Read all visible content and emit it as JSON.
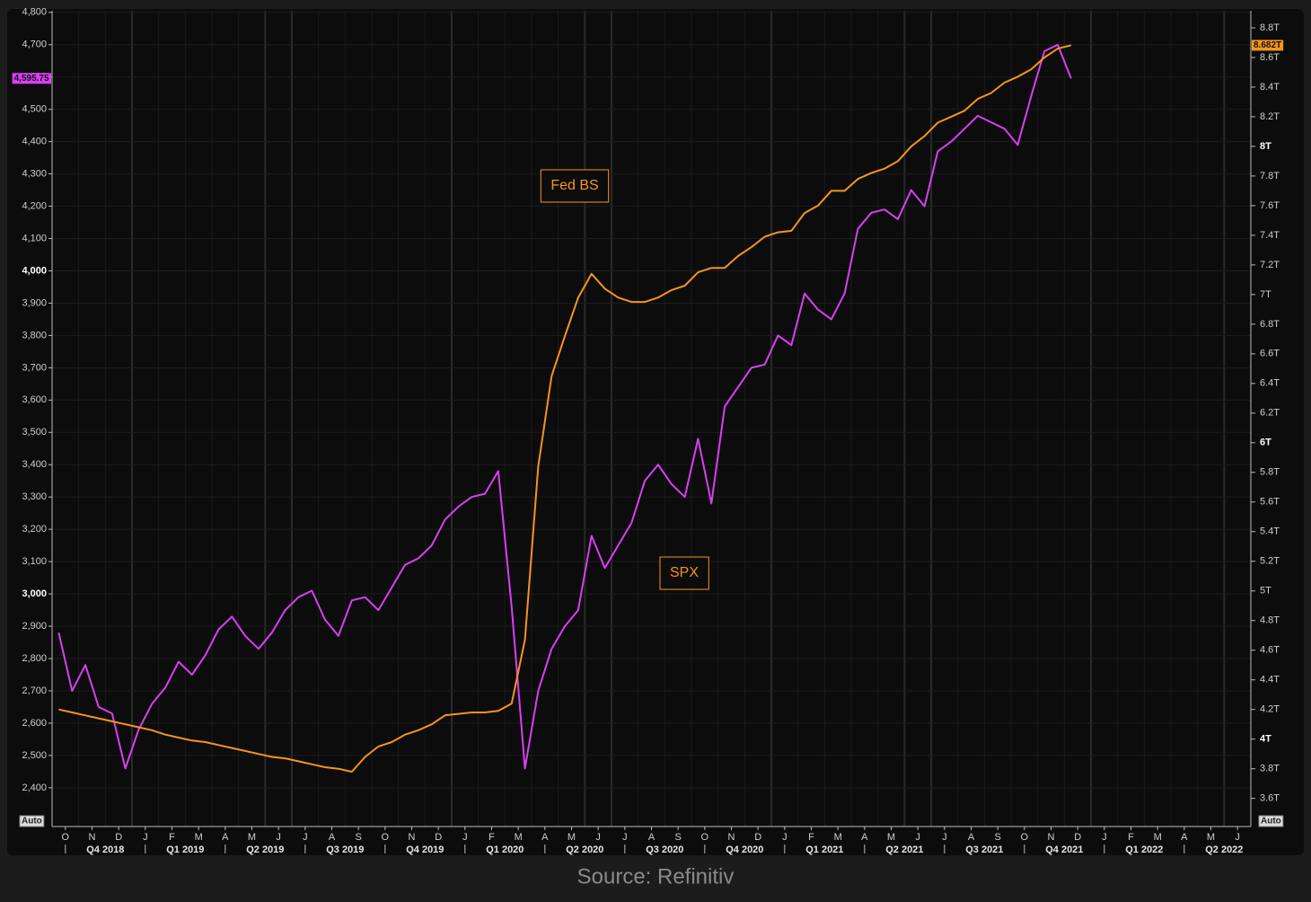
{
  "chart_data": {
    "type": "line",
    "categories": [
      "O",
      null,
      "N",
      null,
      "D",
      null,
      "J",
      null,
      "F",
      null,
      "M",
      null,
      "A",
      null,
      "M",
      null,
      "J",
      null,
      "J",
      null,
      "A",
      null,
      "S",
      null,
      "O",
      null,
      "N",
      null,
      "D",
      null,
      "J",
      null,
      "F",
      null,
      "M",
      null,
      "A",
      null,
      "M",
      null,
      "J",
      null,
      "J",
      null,
      "A",
      null,
      "S",
      null,
      "O",
      null,
      "N",
      null,
      "D",
      null,
      "J",
      null,
      "F",
      null,
      "M",
      null,
      "A",
      null,
      "M",
      null,
      "J",
      null,
      "J",
      null,
      "A",
      null,
      "S",
      null,
      "O",
      null,
      "N",
      null,
      "D",
      null,
      "J",
      null,
      "F",
      null,
      "M",
      null,
      "A",
      null,
      "M",
      null,
      "J",
      null
    ],
    "quarters": [
      "Q4 2018",
      "Q1 2019",
      "Q2 2019",
      "Q3 2019",
      "Q4 2019",
      "Q1 2020",
      "Q2 2020",
      "Q3 2020",
      "Q4 2020",
      "Q1 2021",
      "Q2 2021",
      "Q3 2021",
      "Q4 2021",
      "Q1 2022",
      "Q2 2022"
    ],
    "series": [
      {
        "name": "SPX",
        "color": "#d93ff2",
        "axis": "y",
        "values": [
          2880,
          2700,
          2780,
          2650,
          2630,
          2460,
          2580,
          2660,
          2710,
          2790,
          2750,
          2810,
          2890,
          2930,
          2870,
          2830,
          2880,
          2950,
          2990,
          3010,
          2920,
          2870,
          2980,
          2990,
          2950,
          3020,
          3090,
          3110,
          3150,
          3230,
          3270,
          3300,
          3310,
          3380,
          2960,
          2460,
          2700,
          2830,
          2900,
          2950,
          3180,
          3080,
          3150,
          3220,
          3350,
          3400,
          3340,
          3300,
          3480,
          3280,
          3580,
          3640,
          3700,
          3710,
          3800,
          3770,
          3930,
          3880,
          3850,
          3930,
          4130,
          4180,
          4190,
          4160,
          4250,
          4200,
          4370,
          4400,
          4440,
          4480,
          4460,
          4440,
          4390,
          4540,
          4680,
          4700,
          4595.75,
          null,
          null,
          null,
          null,
          null,
          null,
          null,
          null,
          null,
          null,
          null,
          null,
          null
        ],
        "value_labels": [
          null,
          null,
          null,
          null,
          null,
          null,
          null,
          null,
          null,
          null,
          null,
          null,
          null,
          null,
          null,
          null,
          null,
          null,
          null,
          null,
          null,
          null,
          null,
          null,
          null,
          null,
          null,
          null,
          null,
          null,
          null,
          null,
          null,
          null,
          null,
          null,
          null,
          null,
          null,
          null,
          null,
          null,
          null,
          null,
          null,
          null,
          null,
          null,
          null,
          null,
          null,
          null,
          null,
          null,
          null,
          null,
          null,
          null,
          null,
          null,
          null,
          null,
          null,
          null,
          null,
          null,
          null,
          null,
          null,
          null,
          null,
          null,
          null,
          null,
          null,
          null,
          "4,595.75",
          null,
          null,
          null,
          null,
          null,
          null,
          null,
          null,
          null,
          null,
          null,
          null,
          null
        ]
      },
      {
        "name": "Fed BS",
        "color": "#f7941d",
        "axis": "y2",
        "values": [
          4.2,
          4.18,
          4.16,
          4.14,
          4.12,
          4.1,
          4.08,
          4.06,
          4.03,
          4.01,
          3.99,
          3.98,
          3.96,
          3.94,
          3.92,
          3.9,
          3.88,
          3.87,
          3.85,
          3.83,
          3.81,
          3.8,
          3.78,
          3.88,
          3.95,
          3.98,
          4.03,
          4.06,
          4.1,
          4.16,
          4.17,
          4.18,
          4.18,
          4.19,
          4.24,
          4.67,
          5.84,
          6.45,
          6.72,
          6.98,
          7.14,
          7.04,
          6.98,
          6.95,
          6.95,
          6.98,
          7.03,
          7.06,
          7.15,
          7.18,
          7.18,
          7.26,
          7.32,
          7.39,
          7.42,
          7.43,
          7.55,
          7.6,
          7.7,
          7.7,
          7.78,
          7.82,
          7.85,
          7.9,
          8.0,
          8.07,
          8.16,
          8.2,
          8.24,
          8.32,
          8.36,
          8.43,
          8.47,
          8.52,
          8.6,
          8.66,
          8.682,
          null,
          null,
          null,
          null,
          null,
          null,
          null,
          null,
          null,
          null,
          null,
          null,
          null
        ],
        "value_labels": [
          null,
          null,
          null,
          null,
          null,
          null,
          null,
          null,
          null,
          null,
          null,
          null,
          null,
          null,
          null,
          null,
          null,
          null,
          null,
          null,
          null,
          null,
          null,
          null,
          null,
          null,
          null,
          null,
          null,
          null,
          null,
          null,
          null,
          null,
          null,
          null,
          null,
          null,
          null,
          null,
          null,
          null,
          null,
          null,
          null,
          null,
          null,
          null,
          null,
          null,
          null,
          null,
          null,
          null,
          null,
          null,
          null,
          null,
          null,
          null,
          null,
          null,
          null,
          null,
          null,
          null,
          null,
          null,
          null,
          null,
          null,
          null,
          null,
          null,
          null,
          null,
          "8.682T",
          null,
          null,
          null,
          null,
          null,
          null,
          null,
          null,
          null,
          null,
          null,
          null,
          null
        ]
      }
    ],
    "ylim": [
      2280,
      4805
    ],
    "yticks": [
      {
        "value": 2400,
        "label": "2,400"
      },
      {
        "value": 2500,
        "label": "2,500"
      },
      {
        "value": 2600,
        "label": "2,600"
      },
      {
        "value": 2700,
        "label": "2,700"
      },
      {
        "value": 2800,
        "label": "2,800"
      },
      {
        "value": 2900,
        "label": "2,900"
      },
      {
        "value": 3000,
        "label": "3,000"
      },
      {
        "value": 3100,
        "label": "3,100"
      },
      {
        "value": 3200,
        "label": "3,200"
      },
      {
        "value": 3300,
        "label": "3,300"
      },
      {
        "value": 3400,
        "label": "3,400"
      },
      {
        "value": 3500,
        "label": "3,500"
      },
      {
        "value": 3600,
        "label": "3,600"
      },
      {
        "value": 3700,
        "label": "3,700"
      },
      {
        "value": 3800,
        "label": "3,800"
      },
      {
        "value": 3900,
        "label": "3,900"
      },
      {
        "value": 4000,
        "label": "4,000"
      },
      {
        "value": 4100,
        "label": "4,100"
      },
      {
        "value": 4200,
        "label": "4,200"
      },
      {
        "value": 4300,
        "label": "4,300"
      },
      {
        "value": 4400,
        "label": "4,400"
      },
      {
        "value": 4500,
        "label": "4,500"
      },
      {
        "value": 4600,
        "label": "4,600"
      },
      {
        "value": 4700,
        "label": "4,700"
      },
      {
        "value": 4800,
        "label": "4,800"
      }
    ],
    "y2lim": [
      3.41,
      8.915
    ],
    "y2ticks": [
      {
        "value": 3.6,
        "label": "3.6T"
      },
      {
        "value": 3.8,
        "label": "3.8T"
      },
      {
        "value": 4,
        "label": "4T"
      },
      {
        "value": 4.2,
        "label": "4.2T"
      },
      {
        "value": 4.4,
        "label": "4.4T"
      },
      {
        "value": 4.6,
        "label": "4.6T"
      },
      {
        "value": 4.8,
        "label": "4.8T"
      },
      {
        "value": 5,
        "label": "5T"
      },
      {
        "value": 5.2,
        "label": "5.2T"
      },
      {
        "value": 5.4,
        "label": "5.4T"
      },
      {
        "value": 5.6,
        "label": "5.6T"
      },
      {
        "value": 5.8,
        "label": "5.8T"
      },
      {
        "value": 6,
        "label": "6T"
      },
      {
        "value": 6.2,
        "label": "6.2T"
      },
      {
        "value": 6.4,
        "label": "6.4T"
      },
      {
        "value": 6.6,
        "label": "6.6T"
      },
      {
        "value": 6.8,
        "label": "6.8T"
      },
      {
        "value": 7,
        "label": "7T"
      },
      {
        "value": 7.2,
        "label": "7.2T"
      },
      {
        "value": 7.4,
        "label": "7.4T"
      },
      {
        "value": 7.6,
        "label": "7.6T"
      },
      {
        "value": 7.8,
        "label": "7.8T"
      },
      {
        "value": 8,
        "label": "8T"
      },
      {
        "value": 8.2,
        "label": "8.2T"
      },
      {
        "value": 8.4,
        "label": "8.4T"
      },
      {
        "value": 8.6,
        "label": "8.6T"
      },
      {
        "value": 8.8,
        "label": "8.8T"
      }
    ],
    "grid": true,
    "auto_label": "Auto",
    "source": "Source: Refinitiv"
  }
}
